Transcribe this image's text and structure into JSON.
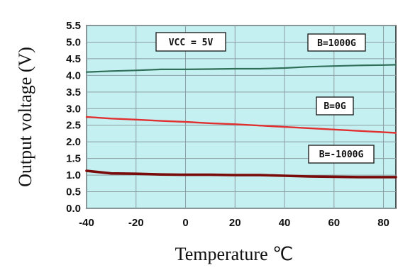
{
  "chart_data": {
    "type": "line",
    "title": "",
    "xlabel": "Temperature  ℃",
    "ylabel": "Output voltage (V)",
    "xlim": [
      -40,
      85
    ],
    "ylim": [
      0,
      5.5
    ],
    "x_ticks": [
      "-40",
      "-20",
      "0",
      "20",
      "40",
      "60",
      "80"
    ],
    "y_ticks": [
      "0.0",
      "0.5",
      "1.0",
      "1.5",
      "2.0",
      "2.5",
      "3.0",
      "3.5",
      "4.0",
      "4.5",
      "5.0",
      "5.5"
    ],
    "grid": true,
    "series": [
      {
        "name": "B=1000G",
        "color": "#2f6f58",
        "x": [
          -40,
          -30,
          -20,
          -10,
          0,
          10,
          20,
          30,
          40,
          50,
          60,
          70,
          80,
          85
        ],
        "y": [
          4.1,
          4.13,
          4.15,
          4.18,
          4.18,
          4.19,
          4.2,
          4.2,
          4.22,
          4.26,
          4.28,
          4.3,
          4.31,
          4.32
        ]
      },
      {
        "name": "B=0G",
        "color": "#e03030",
        "x": [
          -40,
          -30,
          -20,
          -10,
          0,
          10,
          20,
          30,
          40,
          50,
          60,
          70,
          80,
          85
        ],
        "y": [
          2.75,
          2.7,
          2.67,
          2.63,
          2.6,
          2.56,
          2.53,
          2.49,
          2.45,
          2.41,
          2.37,
          2.33,
          2.29,
          2.27
        ]
      },
      {
        "name": "B=-1000G",
        "color": "#7a0b0b",
        "x": [
          -40,
          -30,
          -20,
          -10,
          0,
          10,
          20,
          30,
          40,
          50,
          60,
          70,
          80,
          85
        ],
        "y": [
          1.13,
          1.05,
          1.04,
          1.02,
          1.01,
          1.01,
          1.0,
          1.0,
          0.98,
          0.96,
          0.95,
          0.94,
          0.94,
          0.94
        ]
      }
    ],
    "annotations": [
      "VCC = 5V",
      "B=1000G",
      "B=0G",
      "B=-1000G"
    ],
    "plot_background": "#c5f0f2",
    "grid_color": "#8c9ea2"
  }
}
